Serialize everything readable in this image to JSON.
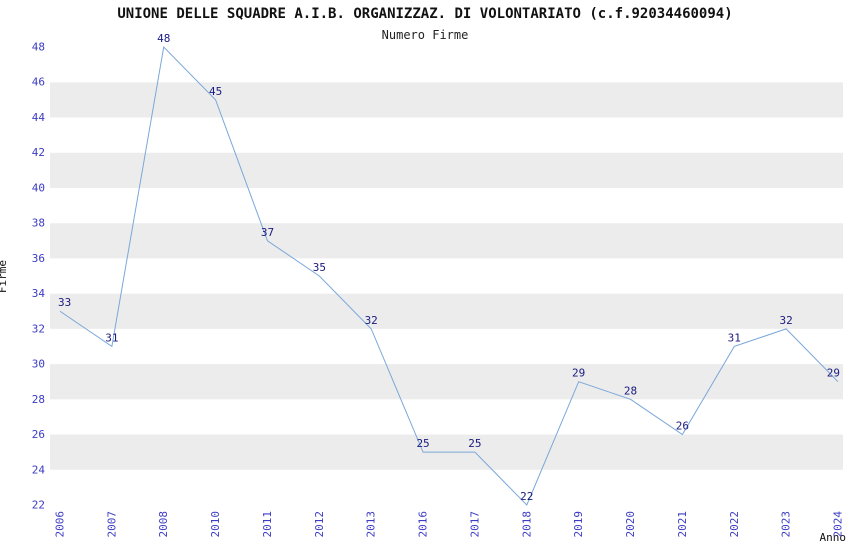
{
  "title": "UNIONE DELLE SQUADRE A.I.B. ORGANIZZAZ. DI VOLONTARIATO (c.f.92034460094)",
  "subtitle": "Numero Firme",
  "ylabel": "Firme",
  "xlabel": "Anno",
  "chart_data": {
    "type": "line",
    "title": "UNIONE DELLE SQUADRE A.I.B. ORGANIZZAZ. DI VOLONTARIATO (c.f.92034460094)",
    "subtitle": "Numero Firme",
    "xlabel": "Anno",
    "ylabel": "Firme",
    "categories": [
      "2006",
      "2007",
      "2008",
      "2010",
      "2011",
      "2012",
      "2013",
      "2016",
      "2017",
      "2018",
      "2019",
      "2020",
      "2021",
      "2022",
      "2023",
      "2024"
    ],
    "values": [
      33,
      31,
      48,
      45,
      37,
      35,
      32,
      25,
      25,
      22,
      29,
      28,
      26,
      31,
      32,
      29
    ],
    "ylim": [
      22,
      48
    ],
    "y_ticks": [
      22,
      24,
      26,
      28,
      30,
      32,
      34,
      36,
      38,
      40,
      42,
      44,
      46,
      48
    ],
    "grid": "alternating-bands",
    "legend_position": "none",
    "colors": {
      "line": "#7aa7d9",
      "band_gray": "#ececec",
      "band_white": "#ffffff",
      "tick_label": "#3b3bc4",
      "data_label": "#1a1a80",
      "title_text": "#111111"
    }
  }
}
